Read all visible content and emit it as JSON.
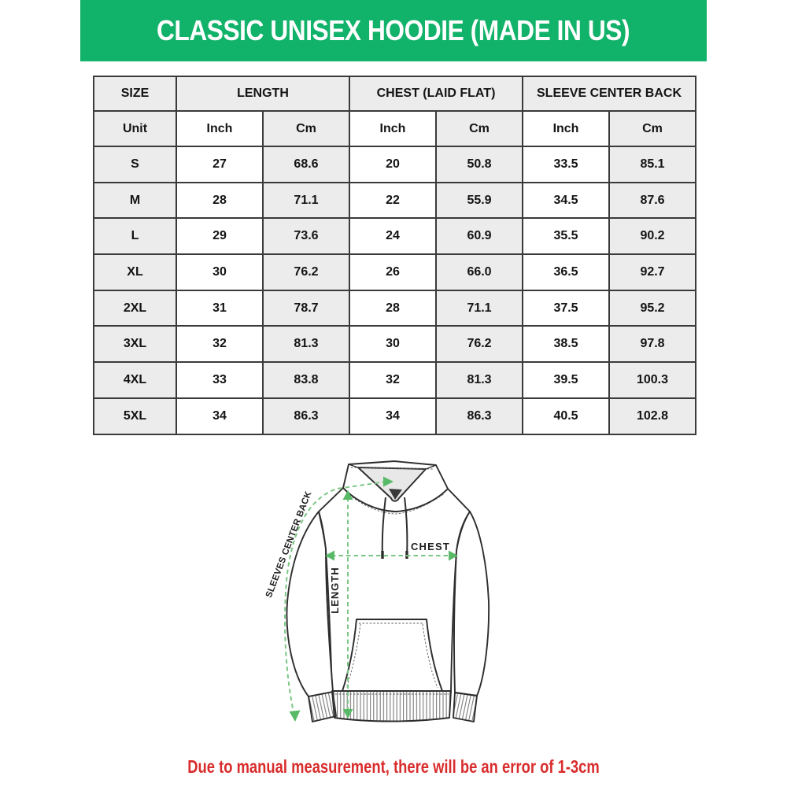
{
  "banner": {
    "title": "CLASSIC UNISEX HOODIE (MADE IN US)",
    "bg_color": "#11b269",
    "text_color": "#ffffff"
  },
  "table": {
    "columns": [
      {
        "label": "SIZE"
      },
      {
        "label": "LENGTH"
      },
      {
        "label": "CHEST (LAID FLAT)"
      },
      {
        "label": "SLEEVE CENTER BACK"
      }
    ],
    "unit_row": {
      "label": "Unit",
      "units": [
        "Inch",
        "Cm",
        "Inch",
        "Cm",
        "Inch",
        "Cm"
      ]
    },
    "rows": [
      {
        "size": "S",
        "values": [
          "27",
          "68.6",
          "20",
          "50.8",
          "33.5",
          "85.1"
        ]
      },
      {
        "size": "M",
        "values": [
          "28",
          "71.1",
          "22",
          "55.9",
          "34.5",
          "87.6"
        ]
      },
      {
        "size": "L",
        "values": [
          "29",
          "73.6",
          "24",
          "60.9",
          "35.5",
          "90.2"
        ]
      },
      {
        "size": "XL",
        "values": [
          "30",
          "76.2",
          "26",
          "66.0",
          "36.5",
          "92.7"
        ]
      },
      {
        "size": "2XL",
        "values": [
          "31",
          "78.7",
          "28",
          "71.1",
          "37.5",
          "95.2"
        ]
      },
      {
        "size": "3XL",
        "values": [
          "32",
          "81.3",
          "30",
          "76.2",
          "38.5",
          "97.8"
        ]
      },
      {
        "size": "4XL",
        "values": [
          "33",
          "83.8",
          "32",
          "81.3",
          "39.5",
          "100.3"
        ]
      },
      {
        "size": "5XL",
        "values": [
          "34",
          "86.3",
          "34",
          "86.3",
          "40.5",
          "102.8"
        ]
      }
    ],
    "header_bg": "#ececec",
    "border_color": "#3a3a3a"
  },
  "diagram": {
    "labels": {
      "sleeve": "SLEEVES CENTER BACK",
      "length": "LENGTH",
      "chest": "CHEST"
    },
    "line_color": "#7cc684",
    "arrow_color": "#58ba66"
  },
  "footer": {
    "note": "Due to manual measurement, there will be an error of 1-3cm",
    "color": "#d92c2c"
  },
  "chart_data": {
    "type": "table",
    "title": "CLASSIC UNISEX HOODIE (MADE IN US)",
    "columns": [
      "SIZE",
      "LENGTH Inch",
      "LENGTH Cm",
      "CHEST (LAID FLAT) Inch",
      "CHEST (LAID FLAT) Cm",
      "SLEEVE CENTER BACK Inch",
      "SLEEVE CENTER BACK Cm"
    ],
    "rows": [
      [
        "S",
        27,
        68.6,
        20,
        50.8,
        33.5,
        85.1
      ],
      [
        "M",
        28,
        71.1,
        22,
        55.9,
        34.5,
        87.6
      ],
      [
        "L",
        29,
        73.6,
        24,
        60.9,
        35.5,
        90.2
      ],
      [
        "XL",
        30,
        76.2,
        26,
        66.0,
        36.5,
        92.7
      ],
      [
        "2XL",
        31,
        78.7,
        28,
        71.1,
        37.5,
        95.2
      ],
      [
        "3XL",
        32,
        81.3,
        30,
        76.2,
        38.5,
        97.8
      ],
      [
        "4XL",
        33,
        83.8,
        32,
        81.3,
        39.5,
        100.3
      ],
      [
        "5XL",
        34,
        86.3,
        34,
        86.3,
        40.5,
        102.8
      ]
    ]
  }
}
